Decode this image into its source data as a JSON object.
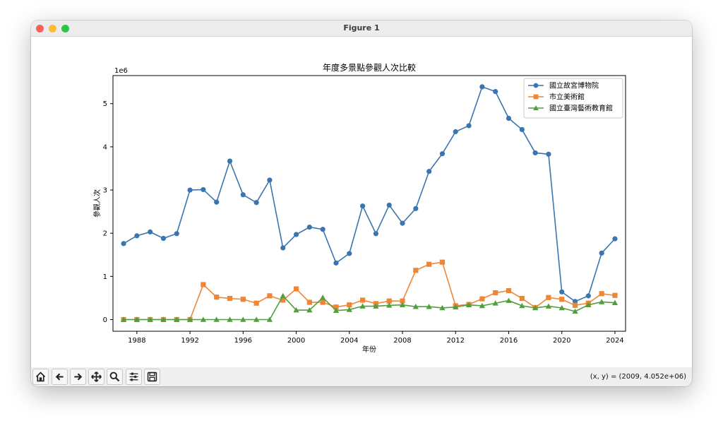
{
  "window": {
    "title": "Figure 1"
  },
  "toolbar": {
    "buttons": [
      {
        "name": "home-icon"
      },
      {
        "name": "back-arrow-icon"
      },
      {
        "name": "forward-arrow-icon"
      },
      {
        "name": "pan-move-icon"
      },
      {
        "name": "zoom-magnifier-icon"
      },
      {
        "name": "configure-subplots-icon"
      },
      {
        "name": "save-figure-icon"
      }
    ],
    "coords": "(x, y) = (2009, 4.052e+06)"
  },
  "chart_data": {
    "type": "line",
    "title": "年度多景點參觀人次比較",
    "xlabel": "年份",
    "ylabel": "參觀人次",
    "y_offset_label": "1e6",
    "xlim": [
      1986.2,
      2024.8
    ],
    "ylim": [
      -0.27,
      5.65
    ],
    "xticks": [
      1988,
      1992,
      1996,
      2000,
      2004,
      2008,
      2012,
      2016,
      2020,
      2024
    ],
    "yticks": [
      0,
      1,
      2,
      3,
      4,
      5
    ],
    "grid": false,
    "legend_position": "top-right",
    "x": [
      1987,
      1988,
      1989,
      1990,
      1991,
      1992,
      1993,
      1994,
      1995,
      1996,
      1997,
      1998,
      1999,
      2000,
      2001,
      2002,
      2003,
      2004,
      2005,
      2006,
      2007,
      2008,
      2009,
      2010,
      2011,
      2012,
      2013,
      2014,
      2015,
      2016,
      2017,
      2018,
      2019,
      2020,
      2021,
      2022,
      2023,
      2024
    ],
    "series": [
      {
        "name": "國立故宮博物院",
        "color": "#3b75af",
        "marker": "circle",
        "values": [
          1.76,
          1.94,
          2.03,
          1.88,
          1.99,
          3.0,
          3.01,
          2.72,
          3.67,
          2.89,
          2.71,
          3.23,
          1.66,
          1.97,
          2.14,
          2.09,
          1.31,
          1.53,
          2.63,
          1.99,
          2.65,
          2.23,
          2.57,
          3.43,
          3.84,
          4.35,
          4.49,
          5.39,
          5.28,
          4.66,
          4.4,
          3.86,
          3.83,
          0.64,
          0.42,
          0.55,
          1.54,
          1.87
        ]
      },
      {
        "name": "市立美術館",
        "color": "#ef8636",
        "marker": "square",
        "values": [
          0,
          0,
          0,
          0,
          0,
          0,
          0.81,
          0.52,
          0.49,
          0.47,
          0.38,
          0.55,
          0.45,
          0.71,
          0.4,
          0.4,
          0.29,
          0.34,
          0.45,
          0.37,
          0.43,
          0.43,
          1.14,
          1.28,
          1.33,
          0.32,
          0.35,
          0.48,
          0.62,
          0.67,
          0.49,
          0.28,
          0.51,
          0.47,
          0.33,
          0.38,
          0.6,
          0.56
        ]
      },
      {
        "name": "國立臺灣藝術教育館",
        "color": "#519e3e",
        "marker": "triangle",
        "values": [
          0,
          0,
          0,
          0,
          0,
          0,
          0,
          0,
          0,
          0,
          0,
          0,
          0.55,
          0.22,
          0.22,
          0.51,
          0.21,
          0.23,
          0.31,
          0.31,
          0.33,
          0.34,
          0.3,
          0.3,
          0.27,
          0.29,
          0.34,
          0.32,
          0.38,
          0.44,
          0.32,
          0.27,
          0.31,
          0.27,
          0.19,
          0.34,
          0.41,
          0.39
        ]
      }
    ]
  }
}
